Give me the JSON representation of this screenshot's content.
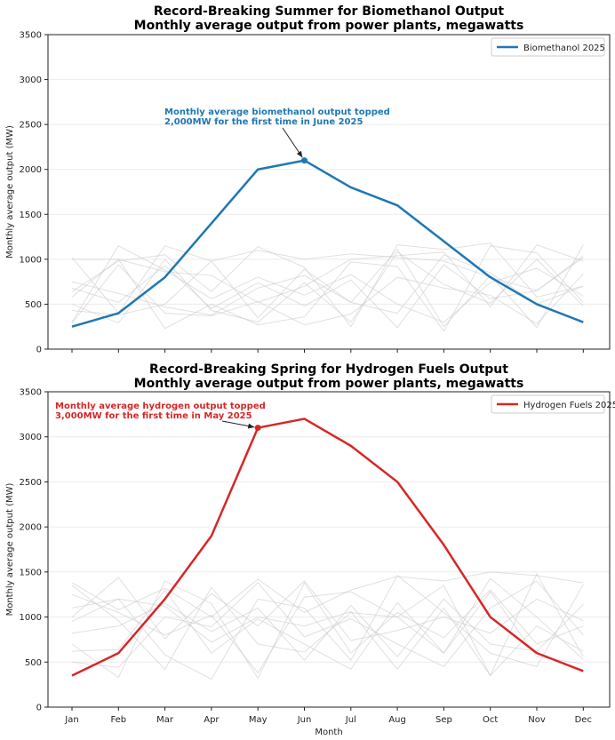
{
  "chart_data": [
    {
      "type": "line",
      "title": "Record-Breaking Summer for Biomethanol Output",
      "subtitle": "Monthly average output from power plants, megawatts",
      "xlabel": "",
      "ylabel": "Monthly average output (MW)",
      "categories": [
        "Jan",
        "Feb",
        "Mar",
        "Apr",
        "May",
        "Jun",
        "Jul",
        "Aug",
        "Sep",
        "Oct",
        "Nov",
        "Dec"
      ],
      "show_x_tick_labels": false,
      "ylim": [
        0,
        3500
      ],
      "yticks": [
        0,
        500,
        1000,
        1500,
        2000,
        2500,
        3000,
        3500
      ],
      "grid": "horizontal",
      "legend": "top-right",
      "series": [
        {
          "name": "Biomethanol 2025",
          "color": "#1f77b4",
          "values": [
            250,
            400,
            800,
            1400,
            2000,
            2100,
            1800,
            1600,
            1200,
            800,
            500,
            300
          ]
        }
      ],
      "background_series_color": "#cccccc",
      "background_series": [
        [
          1020,
          400,
          1150,
          980,
          1100,
          1000,
          1060,
          1020,
          980,
          800,
          650,
          1040
        ],
        [
          750,
          620,
          470,
          380,
          680,
          820,
          520,
          1110,
          250,
          820,
          240,
          1160
        ],
        [
          640,
          980,
          1050,
          640,
          1140,
          910,
          250,
          1160,
          1110,
          1180,
          580,
          700
        ],
        [
          580,
          1000,
          860,
          820,
          520,
          700,
          1000,
          1040,
          1080,
          470,
          1160,
          980
        ],
        [
          300,
          1150,
          880,
          560,
          800,
          600,
          830,
          500,
          300,
          740,
          900,
          590
        ],
        [
          500,
          290,
          1000,
          430,
          300,
          740,
          300,
          1080,
          720,
          510,
          1000,
          480
        ],
        [
          430,
          380,
          500,
          980,
          350,
          890,
          520,
          400,
          1050,
          850,
          500,
          700
        ],
        [
          680,
          520,
          930,
          450,
          740,
          480,
          770,
          240,
          940,
          560,
          650,
          1020
        ],
        [
          1000,
          1000,
          230,
          500,
          270,
          360,
          970,
          920,
          200,
          1150,
          1070,
          520
        ],
        [
          290,
          940,
          400,
          370,
          530,
          270,
          390,
          800,
          680,
          600,
          280,
          840
        ]
      ],
      "annotation": {
        "text_lines": [
          "Monthly average biomethanol output topped",
          "2,000MW for the first time in June 2025"
        ],
        "month": "Jun",
        "value": 2100
      }
    },
    {
      "type": "line",
      "title": "Record-Breaking Spring for Hydrogen Fuels Output",
      "subtitle": "Monthly average output from power plants, megawatts",
      "xlabel": "Month",
      "ylabel": "Monthly average output (MW)",
      "categories": [
        "Jan",
        "Feb",
        "Mar",
        "Apr",
        "May",
        "Jun",
        "Jul",
        "Aug",
        "Sep",
        "Oct",
        "Nov",
        "Dec"
      ],
      "show_x_tick_labels": true,
      "ylim": [
        0,
        3500
      ],
      "yticks": [
        0,
        500,
        1000,
        1500,
        2000,
        2500,
        3000,
        3500
      ],
      "grid": "horizontal",
      "legend": "top-right",
      "series": [
        {
          "name": "Hydrogen Fuels 2025",
          "color": "#d62728",
          "values": [
            350,
            600,
            1200,
            1900,
            3100,
            3200,
            2900,
            2500,
            1800,
            1000,
            600,
            400
          ]
        }
      ],
      "background_series_color": "#cccccc",
      "background_series": [
        [
          1380,
          1080,
          1320,
          1000,
          1420,
          1050,
          1300,
          1450,
          1400,
          1500,
          1460,
          1380
        ],
        [
          1100,
          1200,
          1120,
          720,
          1000,
          900,
          1060,
          420,
          1100,
          350,
          1480,
          560
        ],
        [
          700,
          330,
          1400,
          1150,
          320,
          1380,
          600,
          1050,
          770,
          1300,
          700,
          900
        ],
        [
          1350,
          960,
          420,
          1330,
          700,
          610,
          1050,
          1000,
          600,
          1430,
          1000,
          530
        ],
        [
          950,
          1200,
          580,
          310,
          1200,
          1100,
          520,
          1460,
          1050,
          600,
          450,
          1360
        ],
        [
          500,
          440,
          1000,
          890,
          1380,
          780,
          980,
          700,
          450,
          1100,
          1400,
          800
        ],
        [
          1250,
          1050,
          800,
          1020,
          380,
          1220,
          1280,
          1000,
          1350,
          350,
          900,
          620
        ],
        [
          620,
          640,
          1300,
          600,
          980,
          700,
          420,
          1160,
          600,
          1280,
          560,
          480
        ],
        [
          1000,
          1440,
          760,
          1260,
          900,
          1400,
          740,
          850,
          1000,
          820,
          1200,
          960
        ],
        [
          820,
          900,
          1150,
          840,
          1100,
          520,
          1130,
          560,
          1200,
          700,
          620,
          1140
        ]
      ],
      "annotation": {
        "text_lines": [
          "Monthly average hydrogen output topped",
          "3,000MW for the first time in May 2025"
        ],
        "month": "May",
        "value": 3100
      }
    }
  ]
}
